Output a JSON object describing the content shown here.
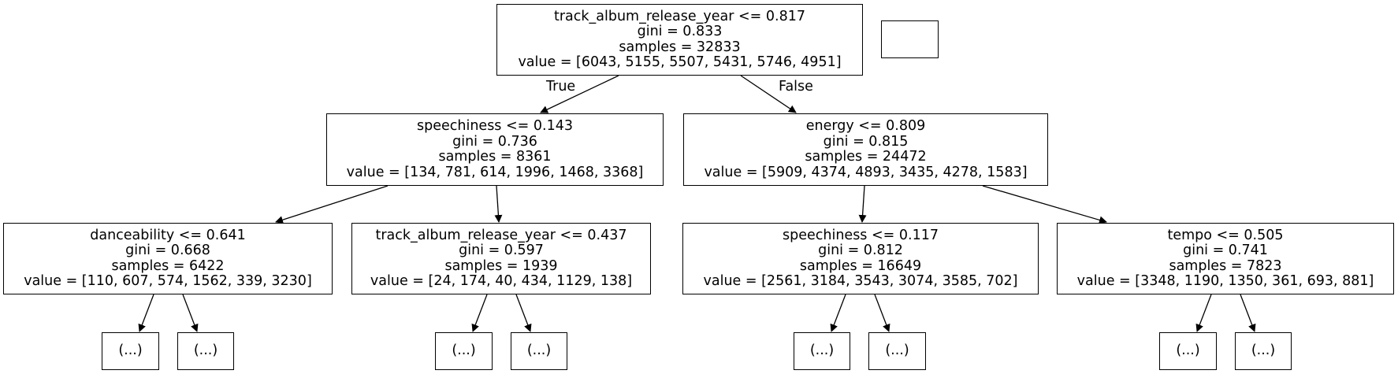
{
  "tree": {
    "root": {
      "condition": "track_album_release_year <= 0.817",
      "gini": "gini = 0.833",
      "samples": "samples = 32833",
      "value": "value = [6043, 5155, 5507, 5431, 5746, 4951]"
    },
    "edge_labels": {
      "true": "True",
      "false": "False"
    },
    "level1": [
      {
        "condition": "speechiness <= 0.143",
        "gini": "gini = 0.736",
        "samples": "samples = 8361",
        "value": "value = [134, 781, 614, 1996, 1468, 3368]"
      },
      {
        "condition": "energy <= 0.809",
        "gini": "gini = 0.815",
        "samples": "samples = 24472",
        "value": "value = [5909, 4374, 4893, 3435, 4278, 1583]"
      }
    ],
    "level2": [
      {
        "condition": "danceability <= 0.641",
        "gini": "gini = 0.668",
        "samples": "samples = 6422",
        "value": "value = [110, 607, 574, 1562, 339, 3230]"
      },
      {
        "condition": "track_album_release_year <= 0.437",
        "gini": "gini = 0.597",
        "samples": "samples = 1939",
        "value": "value = [24, 174, 40, 434, 1129, 138]"
      },
      {
        "condition": "speechiness <= 0.117",
        "gini": "gini = 0.812",
        "samples": "samples = 16649",
        "value": "value = [2561, 3184, 3543, 3074, 3585, 702]"
      },
      {
        "condition": "tempo <= 0.505",
        "gini": "gini = 0.741",
        "samples": "samples = 7823",
        "value": "value = [3348, 1190, 1350, 361, 693, 881]"
      }
    ],
    "truncated_label": "(...)"
  }
}
